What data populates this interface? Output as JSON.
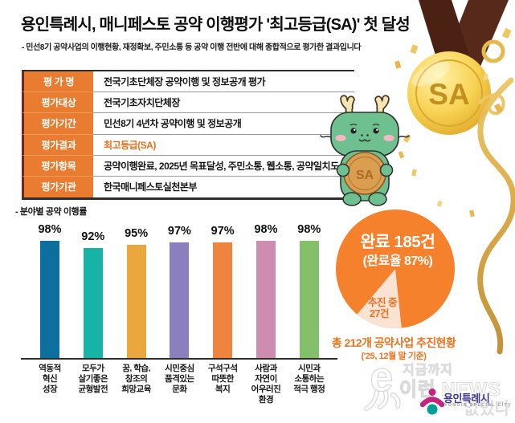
{
  "header": {
    "title": "용인특례시, 매니페스토 공약 이행평가 '최고등급(SA)' 첫 달성",
    "subtitle": "- 민선8기 공약사업의 이행현황, 재정확보, 주민소통 등 공약 이행 전반에 대해 종합적으로 평가한 결과입니다"
  },
  "medal": {
    "label": "SA"
  },
  "mascot": {
    "coin_label": "SA"
  },
  "evaluation_table": {
    "rows": [
      {
        "label": "평 가 명",
        "value": "전국기초단체장 공약이행 및 정보공개 평가",
        "highlight": false
      },
      {
        "label": "평가대상",
        "value": "전국기초자치단체장",
        "highlight": false
      },
      {
        "label": "평가기간",
        "value": "민선8기 4년차 공약이행 및 정보공개",
        "highlight": false
      },
      {
        "label": "평가결과",
        "value": "최고등급(SA)",
        "highlight": true
      },
      {
        "label": "평가항목",
        "value": "공약이행완료, 2025년 목표달성, 주민소통, 웹소통, 공약일치도",
        "highlight": false
      },
      {
        "label": "평가기관",
        "value": "한국매니페스토실천본부",
        "highlight": false
      }
    ]
  },
  "chart_data": [
    {
      "type": "bar",
      "title": "- 분야별 공약 이행률",
      "categories": [
        [
          "역동적",
          "혁신",
          "성장"
        ],
        [
          "모두가",
          "살기좋은",
          "균형발전"
        ],
        [
          "꿈, 학습,",
          "창조의",
          "희망교육"
        ],
        [
          "시민중심",
          "품격있는",
          "문화"
        ],
        [
          "구석구석",
          "따뜻한",
          "복지"
        ],
        [
          "사람과",
          "자연이",
          "어우러진",
          "환경"
        ],
        [
          "시민과",
          "소통하는",
          "적극 행정"
        ]
      ],
      "values": [
        98,
        92,
        95,
        97,
        97,
        98,
        98
      ],
      "unit": "%",
      "colors": [
        "#0c6f9e",
        "#17b3a7",
        "#e9a73e",
        "#8b80bd",
        "#ee8440",
        "#cd8cb0",
        "#84bf6a"
      ],
      "ylim": [
        0,
        100
      ],
      "grid": false,
      "legend": "none"
    },
    {
      "type": "pie",
      "slices": [
        {
          "label": "완료",
          "count_label": "완료 185건",
          "rate_label": "(완료율 87%)",
          "value": 185,
          "pct": 87,
          "color": "#f5812c"
        },
        {
          "label": "추진 중",
          "count_label": "27건",
          "value": 27,
          "pct": 13,
          "color": "#fbe3d4"
        }
      ],
      "caption_line1": "총 212개 공약사업 추진현황",
      "caption_line2": "('25, 12월 말 기준)"
    }
  ],
  "watermark": {
    "line1": "지금까지",
    "line2": "이런 NEWS",
    "line3": "없었다",
    "logo_text": "용인특례시",
    "logo_subtext": "YONGIN SPECIAL CITY"
  },
  "colors": {
    "accent_orange": "#f0721c",
    "table_label_bg": "#e97c31",
    "table_left_bar": "#7b241a",
    "highlight_text": "#e8701b",
    "medal_gold": "#f5ce53",
    "ribbon_brown": "#4b2114",
    "mascot_green": "#6ec08f"
  }
}
